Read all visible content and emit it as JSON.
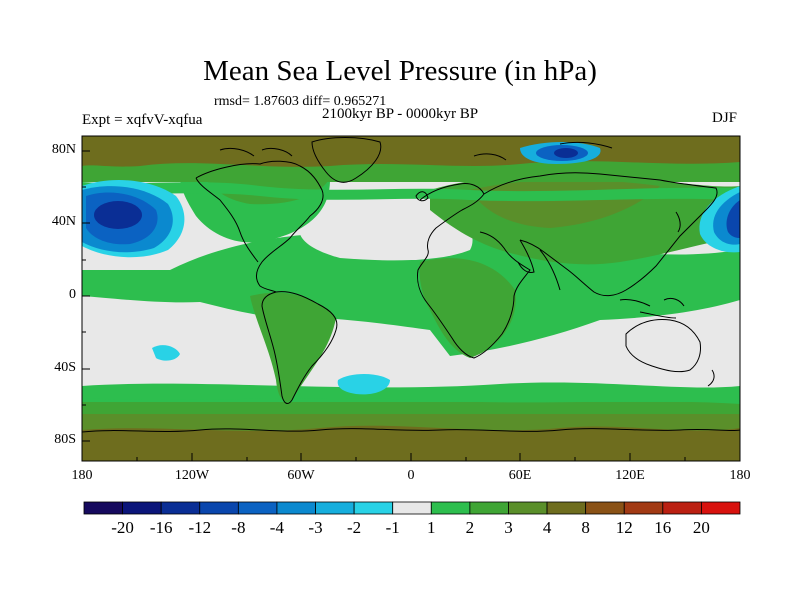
{
  "title": "Mean Sea Level Pressure (in hPa)",
  "stats": "rmsd= 1.87603 diff= 0.965271",
  "subtitle": "2100kyr BP - 0000kyr BP",
  "experiment": "Expt = xqfvV-xqfua",
  "season": "DJF",
  "map": {
    "lat_ticks": [
      "80N",
      "40N",
      "0",
      "40S",
      "80S"
    ],
    "lon_ticks": [
      "180",
      "120W",
      "60W",
      "0",
      "60E",
      "120E",
      "180"
    ]
  },
  "colorbar": {
    "labels": [
      "-20",
      "-16",
      "-12",
      "-8",
      "-4",
      "-3",
      "-2",
      "-1",
      "1",
      "2",
      "3",
      "4",
      "8",
      "12",
      "16",
      "20"
    ],
    "colors": [
      "#160A5E",
      "#0B157A",
      "#0A2E95",
      "#0A46AD",
      "#0B62C2",
      "#0B89CF",
      "#16AEDD",
      "#29D2E6",
      "#E8E8E8",
      "#2DBE4E",
      "#3FA535",
      "#5A8F2A",
      "#6E6D1E",
      "#8A5216",
      "#A23A14",
      "#BB2012",
      "#D8120E"
    ]
  },
  "colors": {
    "ocean_base": "#E8E8E8",
    "green": "#2DBE4E",
    "dark_green": "#3FA535",
    "olive": "#5A8F2A",
    "brown": "#6E6D1E",
    "coast": "#000000"
  }
}
